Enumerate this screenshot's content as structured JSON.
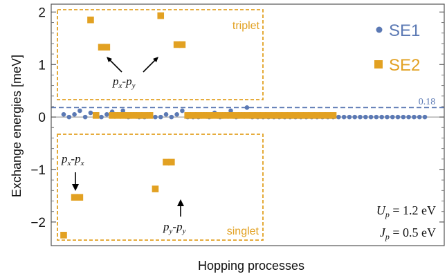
{
  "chart_data": {
    "type": "scatter",
    "title": "",
    "xlabel": "Hopping processes",
    "ylabel": "Exchange energies [meV]",
    "ylim": [
      -2.45,
      2.15
    ],
    "yticks": [
      -2,
      -1,
      0,
      1,
      2
    ],
    "grid": false,
    "legend_position": "top-right",
    "reference_line": {
      "value": 0.18,
      "label": "0.18",
      "style": "dashed"
    },
    "series": [
      {
        "name": "SE1",
        "marker": "circle",
        "color": "#5b79b4",
        "points": [
          [
            1,
            0.05
          ],
          [
            2,
            0.0
          ],
          [
            3,
            0.05
          ],
          [
            4,
            0.12
          ],
          [
            5,
            0.0
          ],
          [
            6,
            0.08
          ],
          [
            7,
            0.05
          ],
          [
            8,
            0.0
          ],
          [
            9,
            0.05
          ],
          [
            10,
            0.1
          ],
          [
            11,
            0.05
          ],
          [
            12,
            0.12
          ],
          [
            13,
            0.0
          ],
          [
            14,
            0.05
          ],
          [
            15,
            0.0
          ],
          [
            16,
            0.0
          ],
          [
            17,
            0.05
          ],
          [
            18,
            0.0
          ],
          [
            19,
            0.0
          ],
          [
            20,
            0.05
          ],
          [
            21,
            0.0
          ],
          [
            22,
            0.05
          ],
          [
            23,
            0.12
          ],
          [
            24,
            0.0
          ],
          [
            25,
            0.0
          ],
          [
            26,
            0.0
          ],
          [
            27,
            0.05
          ],
          [
            28,
            0.0
          ],
          [
            29,
            0.08
          ],
          [
            30,
            0.0
          ],
          [
            31,
            0.05
          ],
          [
            32,
            0.12
          ],
          [
            33,
            0.0
          ],
          [
            34,
            0.05
          ],
          [
            35,
            0.18
          ],
          [
            36,
            0.0
          ],
          [
            37,
            0.0
          ],
          [
            38,
            0.0
          ],
          [
            39,
            0.0
          ],
          [
            40,
            0.0
          ],
          [
            41,
            0.0
          ],
          [
            42,
            0.0
          ],
          [
            43,
            0.0
          ],
          [
            44,
            0.0
          ],
          [
            45,
            0.0
          ],
          [
            46,
            0.0
          ],
          [
            47,
            0.0
          ],
          [
            48,
            0.0
          ],
          [
            49,
            0.0
          ],
          [
            50,
            0.0
          ],
          [
            51,
            0.0
          ],
          [
            52,
            0.0
          ],
          [
            53,
            0.0
          ],
          [
            54,
            0.0
          ],
          [
            55,
            0.0
          ],
          [
            56,
            0.0
          ],
          [
            57,
            0.0
          ],
          [
            58,
            0.0
          ],
          [
            59,
            0.0
          ],
          [
            60,
            0.0
          ],
          [
            61,
            0.0
          ],
          [
            62,
            0.0
          ],
          [
            63,
            0.0
          ],
          [
            64,
            0.0
          ],
          [
            65,
            0.0
          ],
          [
            66,
            0.0
          ],
          [
            67,
            0.0
          ],
          [
            68,
            0.0
          ]
        ]
      },
      {
        "name": "SE2",
        "marker": "square",
        "color": "#e2a122",
        "points": [
          [
            1,
            -2.25
          ],
          [
            3,
            -1.53
          ],
          [
            4,
            -1.53
          ],
          [
            6,
            1.85
          ],
          [
            7,
            0.03
          ],
          [
            8,
            1.33
          ],
          [
            9,
            1.33
          ],
          [
            10,
            0.03
          ],
          [
            11,
            0.03
          ],
          [
            12,
            0.03
          ],
          [
            13,
            0.03
          ],
          [
            14,
            0.03
          ],
          [
            15,
            0.03
          ],
          [
            16,
            0.03
          ],
          [
            17,
            0.03
          ],
          [
            18,
            -1.37
          ],
          [
            19,
            1.93
          ],
          [
            20,
            -0.86
          ],
          [
            21,
            -0.86
          ],
          [
            22,
            1.38
          ],
          [
            23,
            1.38
          ],
          [
            24,
            0.03
          ],
          [
            25,
            0.03
          ],
          [
            26,
            0.03
          ],
          [
            27,
            0.03
          ],
          [
            28,
            0.03
          ],
          [
            29,
            0.03
          ],
          [
            30,
            0.03
          ],
          [
            31,
            0.03
          ],
          [
            32,
            0.03
          ],
          [
            33,
            0.03
          ],
          [
            34,
            0.03
          ],
          [
            35,
            0.03
          ],
          [
            36,
            0.03
          ],
          [
            37,
            0.03
          ],
          [
            38,
            0.03
          ],
          [
            39,
            0.03
          ],
          [
            40,
            0.03
          ],
          [
            41,
            0.03
          ],
          [
            42,
            0.03
          ],
          [
            43,
            0.03
          ],
          [
            44,
            0.03
          ],
          [
            45,
            0.03
          ],
          [
            46,
            0.03
          ],
          [
            47,
            0.03
          ],
          [
            48,
            0.03
          ],
          [
            49,
            0.03
          ],
          [
            50,
            0.03
          ],
          [
            51,
            0.03
          ]
        ]
      }
    ],
    "annotations": {
      "triplet": "triplet",
      "singlet": "singlet",
      "px_py": "px-py",
      "px_px": "px-px",
      "py_py": "py-py",
      "Up": "U_p = 1.2 eV",
      "Jp": "J_p = 0.5 eV"
    }
  }
}
